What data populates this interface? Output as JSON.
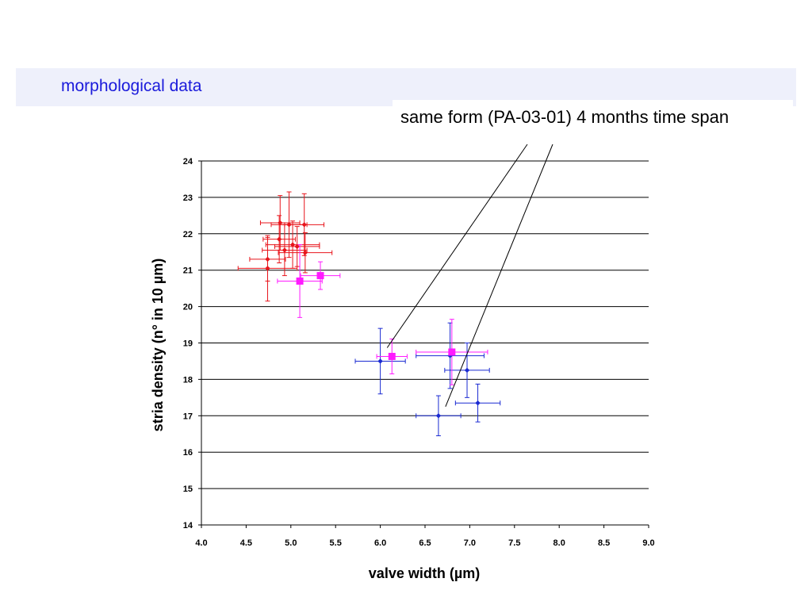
{
  "slide": {
    "title": "morphological data",
    "annotation": "same form (PA-03-01) 4 months time span"
  },
  "colors": {
    "header_band": "#eef0fb",
    "title_text": "#1a1adb",
    "group_red": "#e8141b",
    "group_blue": "#1a2ad2",
    "highlight_magenta": "#ff1aff"
  },
  "chart_data": {
    "type": "scatter",
    "title": "",
    "xlabel": "valve width (µm)",
    "ylabel": "stria density (n° in 10 µm)",
    "xlim": [
      4.0,
      9.0
    ],
    "ylim": [
      14,
      24
    ],
    "x_ticks": [
      "4.0",
      "4.5",
      "5.0",
      "5.5",
      "6.0",
      "6.5",
      "7.0",
      "7.5",
      "8.0",
      "8.5",
      "9.0"
    ],
    "y_ticks": [
      "14",
      "15",
      "16",
      "17",
      "18",
      "19",
      "20",
      "21",
      "22",
      "23",
      "24"
    ],
    "grid": "horizontal",
    "error_bars": true,
    "series": [
      {
        "color": "#e8141b",
        "marker": "diamond",
        "points": [
          {
            "x": 4.88,
            "y": 22.3,
            "xerr": 0.22,
            "yerr": 0.75
          },
          {
            "x": 4.98,
            "y": 22.25,
            "xerr": 0.2,
            "yerr": 0.9
          },
          {
            "x": 5.15,
            "y": 22.25,
            "xerr": 0.22,
            "yerr": 0.85
          },
          {
            "x": 4.87,
            "y": 21.85,
            "xerr": 0.18,
            "yerr": 0.65
          },
          {
            "x": 5.02,
            "y": 21.7,
            "xerr": 0.3,
            "yerr": 0.65
          },
          {
            "x": 5.07,
            "y": 21.65,
            "xerr": 0.25,
            "yerr": 0.55
          },
          {
            "x": 4.93,
            "y": 21.55,
            "xerr": 0.25,
            "yerr": 0.7
          },
          {
            "x": 5.16,
            "y": 21.48,
            "xerr": 0.3,
            "yerr": 0.55
          },
          {
            "x": 4.74,
            "y": 21.3,
            "xerr": 0.2,
            "yerr": 0.6
          },
          {
            "x": 4.74,
            "y": 21.05,
            "xerr": 0.33,
            "yerr": 0.9
          }
        ]
      },
      {
        "color": "#1a2ad2",
        "marker": "diamond",
        "points": [
          {
            "x": 6.0,
            "y": 18.5,
            "xerr": 0.28,
            "yerr": 0.9
          },
          {
            "x": 6.78,
            "y": 18.65,
            "xerr": 0.38,
            "yerr": 0.9
          },
          {
            "x": 6.97,
            "y": 18.25,
            "xerr": 0.25,
            "yerr": 0.75
          },
          {
            "x": 7.09,
            "y": 17.35,
            "xerr": 0.25,
            "yerr": 0.52
          },
          {
            "x": 6.65,
            "y": 17.0,
            "xerr": 0.25,
            "yerr": 0.55
          }
        ]
      },
      {
        "color": "#ff1aff",
        "marker": "square",
        "points": [
          {
            "x": 5.1,
            "y": 20.7,
            "xerr": 0.25,
            "yerr": 1.0
          },
          {
            "x": 5.33,
            "y": 20.85,
            "xerr": 0.22,
            "yerr": 0.38
          },
          {
            "x": 6.13,
            "y": 18.63,
            "xerr": 0.17,
            "yerr": 0.48
          },
          {
            "x": 6.8,
            "y": 18.75,
            "xerr": 0.4,
            "yerr": 0.9
          }
        ]
      }
    ]
  }
}
